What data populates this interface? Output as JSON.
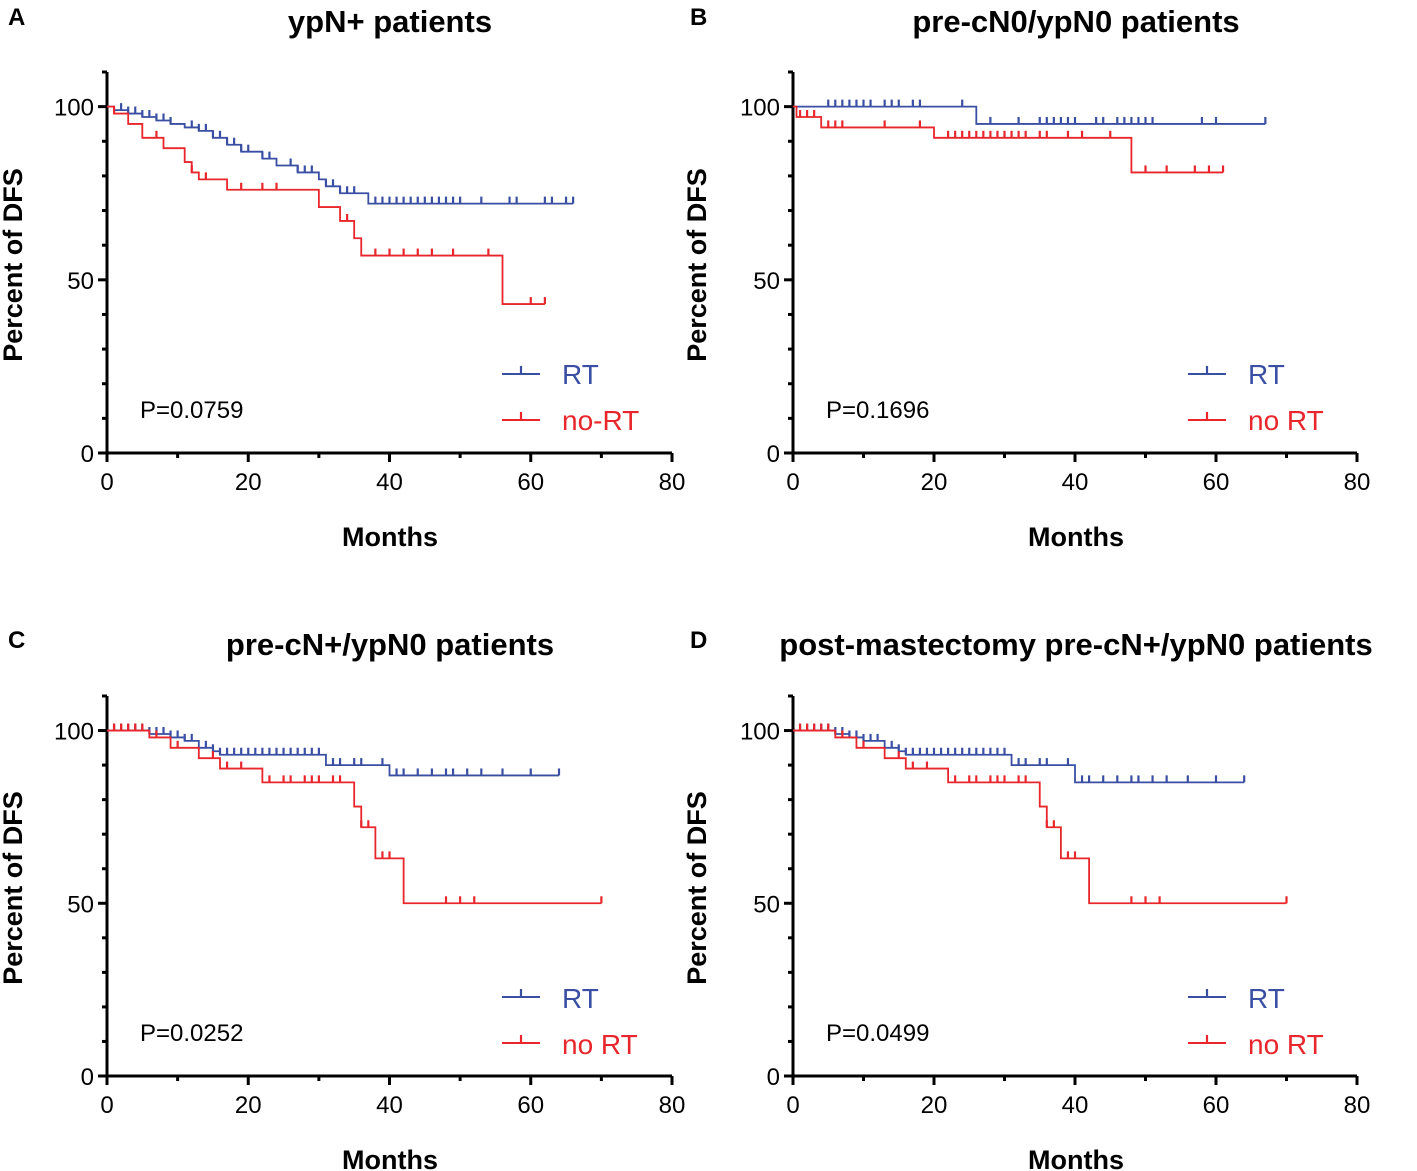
{
  "colors": {
    "rt": "#3a4fa3",
    "no_rt": "#e8262b",
    "axis": "#000000"
  },
  "chart_data": [
    {
      "type": "line",
      "panel": "A",
      "title": "ypN+ patients",
      "xlabel": "Months",
      "ylabel": "Percent of DFS",
      "xlim": [
        0,
        80
      ],
      "ylim": [
        0,
        110
      ],
      "xticks": [
        "0",
        "20",
        "40",
        "60",
        "80"
      ],
      "yticks": [
        "0",
        "50",
        "100"
      ],
      "p_value": "P=0.0759",
      "legend": [
        "RT",
        "no-RT"
      ],
      "series": [
        {
          "name": "RT",
          "steps": [
            [
              0,
              100
            ],
            [
              1,
              99
            ],
            [
              3,
              98
            ],
            [
              5,
              97
            ],
            [
              7,
              96
            ],
            [
              9,
              95
            ],
            [
              11,
              94
            ],
            [
              13,
              93
            ],
            [
              15,
              91
            ],
            [
              17,
              89
            ],
            [
              19,
              87
            ],
            [
              22,
              85
            ],
            [
              24,
              83
            ],
            [
              27,
              81
            ],
            [
              30,
              79
            ],
            [
              31,
              77
            ],
            [
              33,
              75
            ],
            [
              37,
              72
            ],
            [
              66,
              72
            ]
          ],
          "censored": [
            2,
            3,
            4,
            5,
            6,
            7,
            8,
            9,
            12,
            13,
            14,
            15,
            16,
            17,
            18,
            19,
            20,
            22,
            23,
            26,
            27,
            28,
            29,
            31,
            32,
            33,
            34,
            35,
            38,
            39,
            40,
            41,
            42,
            43,
            44,
            45,
            46,
            47,
            48,
            49,
            50,
            53,
            57,
            58,
            62,
            63,
            65,
            66
          ]
        },
        {
          "name": "no-RT",
          "steps": [
            [
              0,
              100
            ],
            [
              1,
              98
            ],
            [
              3,
              95
            ],
            [
              5,
              91
            ],
            [
              8,
              88
            ],
            [
              11,
              84
            ],
            [
              12,
              81
            ],
            [
              13,
              79
            ],
            [
              17,
              76
            ],
            [
              30,
              71
            ],
            [
              33,
              67
            ],
            [
              35,
              62
            ],
            [
              36,
              57
            ],
            [
              56,
              43
            ],
            [
              62,
              43
            ]
          ],
          "censored": [
            1,
            7,
            12,
            14,
            19,
            22,
            24,
            34,
            38,
            40,
            42,
            44,
            46,
            49,
            54,
            60,
            62
          ]
        }
      ]
    },
    {
      "type": "line",
      "panel": "B",
      "title": "pre-cN0/ypN0 patients",
      "xlabel": "Months",
      "ylabel": "Percent of DFS",
      "xlim": [
        0,
        80
      ],
      "ylim": [
        0,
        110
      ],
      "xticks": [
        "0",
        "20",
        "40",
        "60",
        "80"
      ],
      "yticks": [
        "0",
        "50",
        "100"
      ],
      "p_value": "P=0.1696",
      "legend": [
        "RT",
        "no RT"
      ],
      "series": [
        {
          "name": "RT",
          "steps": [
            [
              0,
              100
            ],
            [
              26,
              95
            ],
            [
              67,
              95
            ]
          ],
          "censored": [
            5,
            6,
            7,
            8,
            9,
            10,
            11,
            13,
            14,
            15,
            17,
            18,
            24,
            28,
            32,
            35,
            36,
            37,
            38,
            39,
            40,
            43,
            44,
            46,
            47,
            48,
            49,
            50,
            51,
            58,
            60,
            67
          ]
        },
        {
          "name": "no RT",
          "steps": [
            [
              0,
              100
            ],
            [
              0.5,
              97
            ],
            [
              4,
              94
            ],
            [
              20,
              91
            ],
            [
              48,
              81
            ],
            [
              61,
              81
            ]
          ],
          "censored": [
            1,
            2,
            3,
            5,
            6,
            7,
            13,
            18,
            22,
            23,
            24,
            25,
            26,
            27,
            28,
            29,
            30,
            31,
            32,
            33,
            35,
            36,
            39,
            41,
            45,
            50,
            53,
            57,
            59,
            61
          ]
        }
      ]
    },
    {
      "type": "line",
      "panel": "C",
      "title": "pre-cN+/ypN0 patients",
      "xlabel": "Months",
      "ylabel": "Percent of DFS",
      "xlim": [
        0,
        80
      ],
      "ylim": [
        0,
        110
      ],
      "xticks": [
        "0",
        "20",
        "40",
        "60",
        "80"
      ],
      "yticks": [
        "0",
        "50",
        "100"
      ],
      "p_value": "P=0.0252",
      "legend": [
        "RT",
        "no RT"
      ],
      "series": [
        {
          "name": "RT",
          "steps": [
            [
              0,
              100
            ],
            [
              6,
              99
            ],
            [
              9,
              98
            ],
            [
              11,
              97
            ],
            [
              13,
              95
            ],
            [
              15,
              94
            ],
            [
              16,
              93
            ],
            [
              31,
              90
            ],
            [
              40,
              87
            ],
            [
              64,
              87
            ]
          ],
          "censored": [
            1,
            2,
            3,
            4,
            5,
            6,
            7,
            8,
            9,
            10,
            11,
            12,
            14,
            15,
            16,
            17,
            18,
            19,
            20,
            21,
            22,
            23,
            24,
            25,
            26,
            27,
            28,
            29,
            30,
            32,
            33,
            35,
            36,
            39,
            41,
            42,
            44,
            46,
            48,
            49,
            51,
            53,
            56,
            60,
            64
          ]
        },
        {
          "name": "no RT",
          "steps": [
            [
              0,
              100
            ],
            [
              6,
              98
            ],
            [
              9,
              95
            ],
            [
              13,
              92
            ],
            [
              16,
              89
            ],
            [
              22,
              85
            ],
            [
              35,
              78
            ],
            [
              36,
              72
            ],
            [
              38,
              63
            ],
            [
              42,
              50
            ],
            [
              70,
              50
            ]
          ],
          "censored": [
            1,
            2,
            3,
            4,
            5,
            7,
            10,
            15,
            17,
            19,
            23,
            25,
            26,
            28,
            29,
            30,
            32,
            33,
            36,
            37,
            39,
            40,
            48,
            50,
            52,
            70
          ]
        }
      ]
    },
    {
      "type": "line",
      "panel": "D",
      "title": "post-mastectomy pre-cN+/ypN0 patients",
      "xlabel": "Months",
      "ylabel": "Percent of DFS",
      "xlim": [
        0,
        80
      ],
      "ylim": [
        0,
        110
      ],
      "xticks": [
        "0",
        "20",
        "40",
        "60",
        "80"
      ],
      "yticks": [
        "0",
        "50",
        "100"
      ],
      "p_value": "P=0.0499",
      "legend": [
        "RT",
        "no RT"
      ],
      "series": [
        {
          "name": "RT",
          "steps": [
            [
              0,
              100
            ],
            [
              6,
              99
            ],
            [
              8,
              98
            ],
            [
              10,
              97
            ],
            [
              13,
              95
            ],
            [
              15,
              94
            ],
            [
              16,
              93
            ],
            [
              31,
              90
            ],
            [
              40,
              85
            ],
            [
              64,
              85
            ]
          ],
          "censored": [
            1,
            2,
            3,
            4,
            5,
            6,
            7,
            8,
            9,
            10,
            11,
            12,
            14,
            15,
            16,
            17,
            18,
            19,
            20,
            21,
            22,
            23,
            24,
            25,
            26,
            27,
            28,
            29,
            30,
            32,
            33,
            35,
            36,
            39,
            41,
            42,
            44,
            46,
            48,
            49,
            51,
            53,
            56,
            60,
            64
          ]
        },
        {
          "name": "no RT",
          "steps": [
            [
              0,
              100
            ],
            [
              6,
              98
            ],
            [
              9,
              95
            ],
            [
              13,
              92
            ],
            [
              16,
              89
            ],
            [
              22,
              85
            ],
            [
              35,
              78
            ],
            [
              36,
              72
            ],
            [
              38,
              63
            ],
            [
              42,
              50
            ],
            [
              70,
              50
            ]
          ],
          "censored": [
            1,
            2,
            3,
            4,
            5,
            7,
            10,
            15,
            17,
            19,
            23,
            25,
            26,
            28,
            29,
            30,
            32,
            33,
            36,
            37,
            39,
            40,
            48,
            50,
            52,
            70
          ]
        }
      ]
    }
  ]
}
